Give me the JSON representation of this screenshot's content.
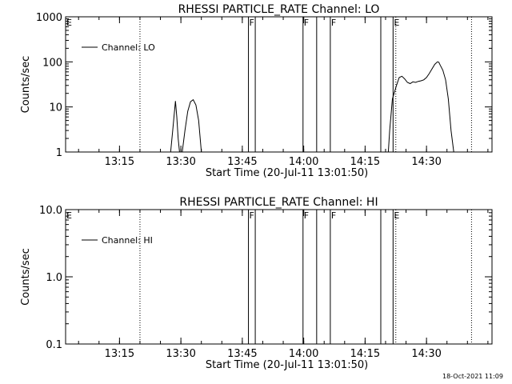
{
  "footer": {
    "timestamp": "18-Oct-2021 11:09"
  },
  "chart_data": [
    {
      "type": "line",
      "title": "RHESSI PARTICLE_RATE Channel: LO",
      "xlabel": "Start Time (20-Jul-11 13:01:50)",
      "ylabel": "Counts/sec",
      "yscale": "log",
      "xlim": [
        "13:01:50",
        "14:46:00"
      ],
      "ylim": [
        1,
        1000
      ],
      "x_ticks": [
        "13:15",
        "13:30",
        "13:45",
        "14:00",
        "14:15",
        "14:30"
      ],
      "y_ticks": [
        "1",
        "10",
        "100",
        "1000"
      ],
      "legend": {
        "label": "Channel: LO",
        "placement": "top-left"
      },
      "series": [
        {
          "name": "Channel: LO",
          "segments": [
            {
              "x": [
                "13:27:30",
                "13:28:00",
                "13:28:40",
                "13:29:00",
                "13:29:20",
                "13:29:40"
              ],
              "y": [
                1,
                3,
                13.5,
                6,
                2,
                1
              ]
            },
            {
              "x": [
                "13:30:20",
                "13:31:00",
                "13:31:40",
                "13:32:20",
                "13:33:00",
                "13:33:40",
                "13:34:20",
                "13:35:00"
              ],
              "y": [
                1,
                3,
                8,
                13,
                14.5,
                11,
                5,
                1
              ]
            },
            {
              "x": [
                "14:20:40",
                "14:21:00",
                "14:21:40",
                "14:22:40",
                "14:23:20",
                "14:24:00",
                "14:24:40",
                "14:25:20",
                "14:26:00",
                "14:26:40",
                "14:27:20",
                "14:28:00",
                "14:28:40",
                "14:29:20",
                "14:30:00",
                "14:30:40",
                "14:31:20",
                "14:32:00",
                "14:32:40",
                "14:33:00",
                "14:33:20",
                "14:34:00",
                "14:34:40",
                "14:35:20",
                "14:36:00",
                "14:36:40"
              ],
              "y": [
                1,
                3,
                15,
                30,
                45,
                48,
                42,
                35,
                33,
                36,
                35,
                37,
                38,
                40,
                45,
                55,
                70,
                88,
                100,
                98,
                85,
                65,
                40,
                15,
                3,
                1
              ]
            }
          ]
        }
      ],
      "flag_marks": [
        {
          "time": "13:46:30",
          "label": "F"
        },
        {
          "time": "13:48:10",
          "label": ""
        },
        {
          "time": "13:59:50",
          "label": "F"
        },
        {
          "time": "14:03:10",
          "label": ""
        },
        {
          "time": "14:06:30",
          "label": "F"
        },
        {
          "time": "14:18:50",
          "label": ""
        },
        {
          "time": "14:21:50",
          "label": "E"
        }
      ],
      "flag_start_label": "E",
      "dotted_marks": [
        "13:20:00",
        "14:22:30",
        "14:41:00"
      ]
    },
    {
      "type": "line",
      "title": "RHESSI PARTICLE_RATE Channel: HI",
      "xlabel": "Start Time (20-Jul-11 13:01:50)",
      "ylabel": "Counts/sec",
      "yscale": "log",
      "xlim": [
        "13:01:50",
        "14:46:00"
      ],
      "ylim": [
        0.1,
        10
      ],
      "x_ticks": [
        "13:15",
        "13:30",
        "13:45",
        "14:00",
        "14:15",
        "14:30"
      ],
      "y_ticks": [
        "0.1",
        "1.0",
        "10.0"
      ],
      "legend": {
        "label": "Channel: HI",
        "placement": "top-left"
      },
      "series": [
        {
          "name": "Channel: HI",
          "segments": []
        }
      ],
      "flag_marks": [
        {
          "time": "13:46:30",
          "label": "F"
        },
        {
          "time": "13:48:10",
          "label": ""
        },
        {
          "time": "13:59:50",
          "label": "F"
        },
        {
          "time": "14:03:10",
          "label": ""
        },
        {
          "time": "14:06:30",
          "label": "F"
        },
        {
          "time": "14:18:50",
          "label": ""
        },
        {
          "time": "14:21:50",
          "label": "E"
        }
      ],
      "flag_start_label": "E",
      "dotted_marks": [
        "13:20:00",
        "14:22:30",
        "14:41:00"
      ]
    }
  ]
}
